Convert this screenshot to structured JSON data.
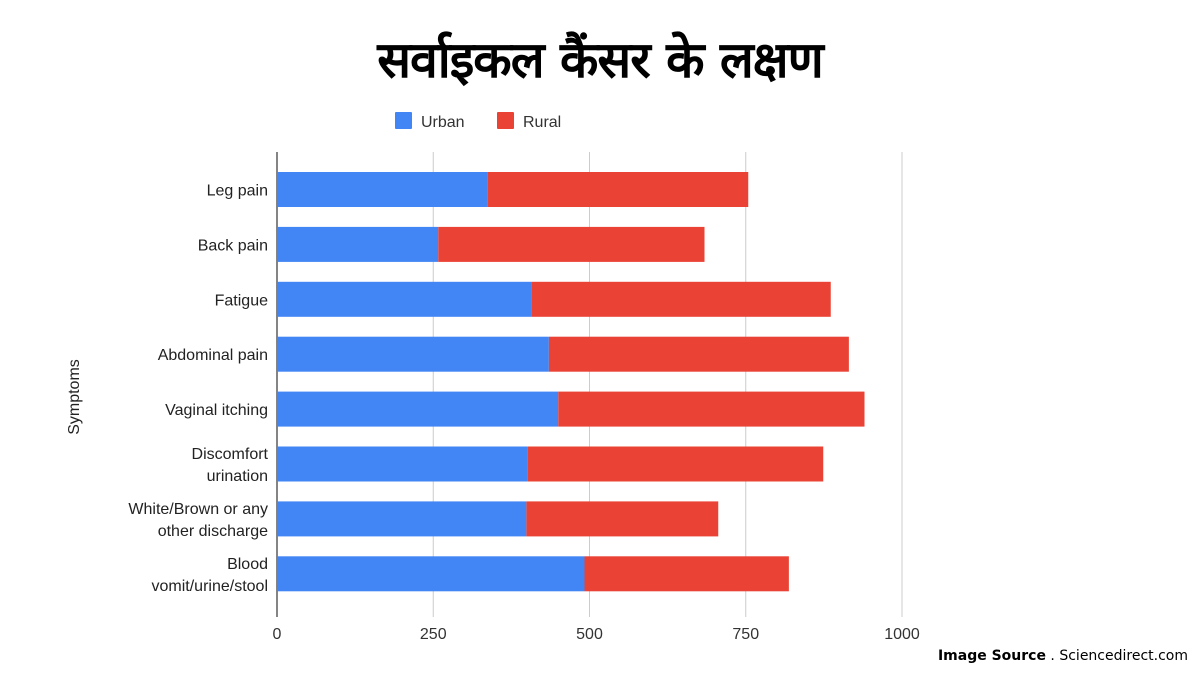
{
  "header": {
    "title": "सर्वाइकल कैंसर के लक्षण"
  },
  "source": {
    "label": "Image Source",
    "separator": " . ",
    "value": "Sciencedirect.com"
  },
  "chart_data": {
    "type": "bar",
    "orientation": "horizontal",
    "stacked": true,
    "title": "",
    "xlabel": "",
    "ylabel": "Symptoms",
    "xlim": [
      0,
      1000
    ],
    "x_ticks": [
      0,
      250,
      500,
      750,
      1000
    ],
    "grid": true,
    "legend_position": "top",
    "categories": [
      [
        "Leg pain"
      ],
      [
        "Back pain"
      ],
      [
        "Fatigue"
      ],
      [
        "Abdominal pain"
      ],
      [
        "Vaginal itching"
      ],
      [
        "Discomfort",
        "urination"
      ],
      [
        "White/Brown or any",
        "other discharge"
      ],
      [
        "Blood",
        "vomit/urine/stool"
      ]
    ],
    "series": [
      {
        "name": "Urban",
        "color": "#4285f4",
        "values": [
          337,
          258,
          407,
          435,
          450,
          401,
          399,
          492
        ]
      },
      {
        "name": "Rural",
        "color": "#ea4335",
        "values": [
          417,
          426,
          479,
          480,
          490,
          473,
          307,
          327
        ]
      }
    ]
  }
}
